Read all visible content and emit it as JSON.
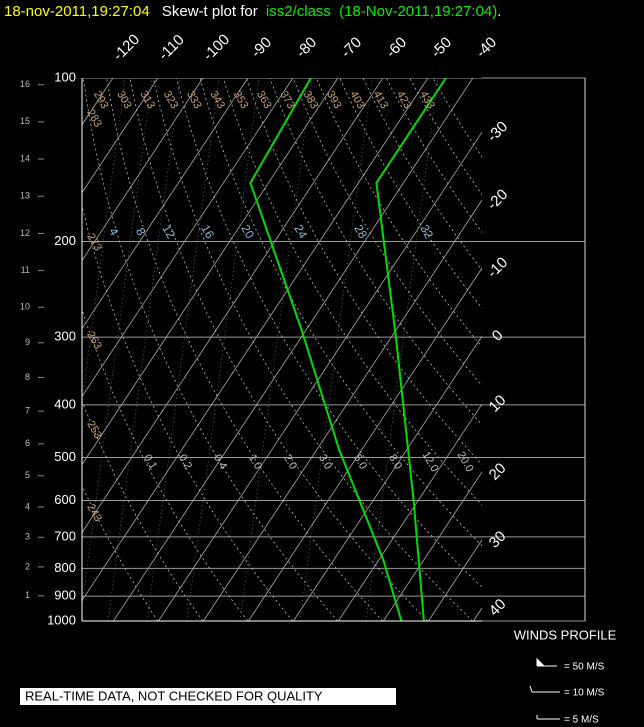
{
  "chart_data": {
    "type": "skewt",
    "title_time": "18-nov-2011,19:27:04",
    "title_text": "Skew-t plot for",
    "title_source": "iss2/class",
    "title_source_time": "(18-Nov-2011,19:27:04)",
    "title_end": ".",
    "plim": [
      100,
      1000
    ],
    "pressure_ticks": [
      100,
      200,
      300,
      400,
      500,
      600,
      700,
      800,
      900,
      1000
    ],
    "height_ticks": [
      1,
      2,
      3,
      4,
      5,
      6,
      7,
      8,
      9,
      10,
      11,
      12,
      13,
      14,
      15,
      16
    ],
    "temperature_ticks": [
      -120,
      -110,
      -100,
      -90,
      -80,
      -70,
      -60,
      -50,
      -40,
      -30,
      -20,
      -10,
      0,
      10,
      20,
      30,
      40
    ],
    "dry_adiabats": [
      243,
      253,
      263,
      273,
      283,
      293,
      303,
      313,
      323,
      333,
      343,
      353,
      363,
      373,
      383,
      393,
      403,
      413,
      423,
      433
    ],
    "mixing_labels": [
      "4",
      "8",
      "12",
      "16",
      "20",
      "24",
      "28",
      "32"
    ],
    "moist_labels": [
      "0.1",
      "0.2",
      "0.4",
      "1.0",
      "2.0",
      "3.0",
      "5.0",
      "8.0",
      "12.0",
      "20.0"
    ],
    "series": [
      {
        "color": "#00dd00",
        "pressure": [
          1000,
          600,
          300,
          156,
          100
        ],
        "values": [
          29,
          9,
          -19,
          -46,
          -46
        ]
      },
      {
        "color": "#00dd00",
        "pressure": [
          1000,
          772,
          484,
          291,
          156,
          100
        ],
        "values": [
          24,
          11,
          -15,
          -41,
          -74,
          -76
        ]
      }
    ],
    "winds_title": "WINDS PROFILE",
    "winds_legend": [
      "= 50 M/S",
      "= 10 M/S",
      "= 5 M/S"
    ],
    "notice": "REAL-TIME DATA, NOT CHECKED FOR QUALITY"
  }
}
